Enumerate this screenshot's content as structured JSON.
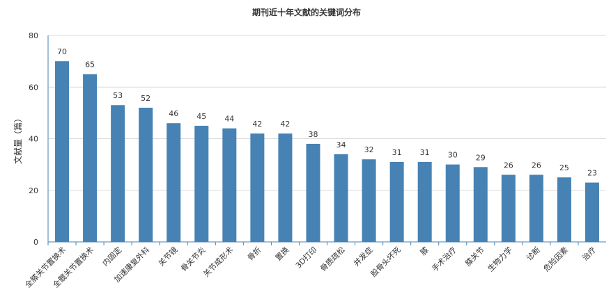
{
  "chart_data": {
    "type": "bar",
    "title": "期刊近十年文献的关键词分布",
    "xlabel": "",
    "ylabel": "文献量（篇）",
    "ylim": [
      0,
      80
    ],
    "yticks": [
      0,
      20,
      40,
      60,
      80
    ],
    "grid": true,
    "bar_color": "#4682b4",
    "categories": [
      "全膝关节置换术",
      "全髋关节置换术",
      "内固定",
      "加速康复外科",
      "关节镜",
      "骨关节炎",
      "关节成形术",
      "骨折",
      "置换",
      "3D打印",
      "骨质疏松",
      "并发症",
      "股骨头坏死",
      "膝",
      "手术治疗",
      "膝关节",
      "生物力学",
      "诊断",
      "危险因素",
      "治疗"
    ],
    "values": [
      70,
      65,
      53,
      52,
      46,
      45,
      44,
      42,
      42,
      38,
      34,
      32,
      31,
      31,
      30,
      29,
      26,
      26,
      25,
      23
    ]
  }
}
